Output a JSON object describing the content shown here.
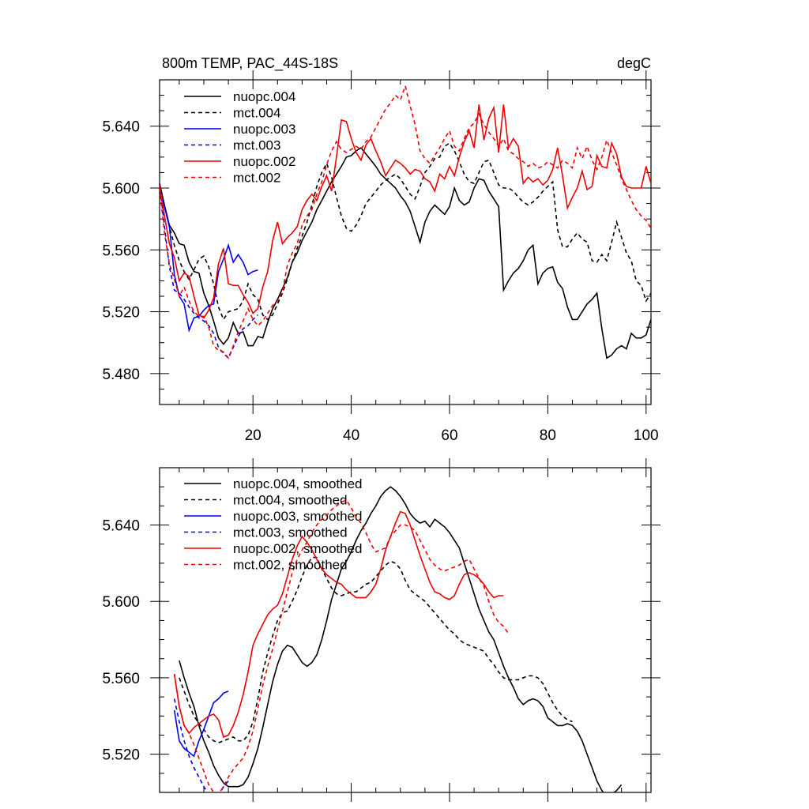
{
  "page": {
    "title_left": "800m TEMP, PAC_44S-18S",
    "title_right": "degC"
  },
  "colors": {
    "black": "#000000",
    "blue": "#0000ee",
    "red": "#ee0000"
  },
  "chart_data": [
    {
      "type": "line",
      "title": "800m TEMP, PAC_44S-18S",
      "units": "degC",
      "xlim": [
        1,
        101
      ],
      "ylim": [
        5.46,
        5.67
      ],
      "xticks": [
        20,
        40,
        60,
        80,
        100
      ],
      "xtick_labels": [
        "20",
        "40",
        "60",
        "80",
        "100"
      ],
      "yticks": [
        5.48,
        5.52,
        5.56,
        5.6,
        5.64
      ],
      "ytick_labels": [
        "5.480",
        "5.520",
        "5.560",
        "5.600",
        "5.640"
      ],
      "legend_position": "top-left",
      "series": [
        {
          "name": "nuopc.004",
          "color": "black",
          "dash": false,
          "x0": 1,
          "values": [
            5.603,
            5.589,
            5.576,
            5.571,
            5.564,
            5.563,
            5.552,
            5.546,
            5.545,
            5.532,
            5.524,
            5.514,
            5.503,
            5.499,
            5.503,
            5.513,
            5.506,
            5.507,
            5.498,
            5.498,
            5.504,
            5.503,
            5.513,
            5.522,
            5.528,
            5.535,
            5.542,
            5.552,
            5.558,
            5.566,
            5.572,
            5.578,
            5.586,
            5.592,
            5.598,
            5.604,
            5.609,
            5.614,
            5.62,
            5.621,
            5.624,
            5.626,
            5.622,
            5.618,
            5.614,
            5.609,
            5.606,
            5.603,
            5.6,
            5.595,
            5.591,
            5.585,
            5.575,
            5.565,
            5.578,
            5.585,
            5.589,
            5.586,
            5.583,
            5.588,
            5.6,
            5.592,
            5.589,
            5.591,
            5.6,
            5.606,
            5.605,
            5.598,
            5.593,
            5.588,
            5.534,
            5.54,
            5.545,
            5.548,
            5.553,
            5.56,
            5.563,
            5.538,
            5.545,
            5.548,
            5.549,
            5.539,
            5.535,
            5.523,
            5.515,
            5.515,
            5.52,
            5.525,
            5.528,
            5.532,
            5.509,
            5.49,
            5.492,
            5.496,
            5.498,
            5.496,
            5.506,
            5.503,
            5.503,
            5.505,
            5.515
          ]
        },
        {
          "name": "mct.004",
          "color": "black",
          "dash": true,
          "x0": 1,
          "values": [
            5.6,
            5.588,
            5.575,
            5.563,
            5.553,
            5.546,
            5.541,
            5.547,
            5.554,
            5.556,
            5.549,
            5.538,
            5.523,
            5.515,
            5.52,
            5.521,
            5.522,
            5.527,
            5.538,
            5.531,
            5.528,
            5.518,
            5.515,
            5.518,
            5.525,
            5.532,
            5.541,
            5.552,
            5.561,
            5.569,
            5.578,
            5.589,
            5.601,
            5.61,
            5.616,
            5.607,
            5.594,
            5.582,
            5.574,
            5.572,
            5.576,
            5.582,
            5.59,
            5.594,
            5.598,
            5.602,
            5.605,
            5.607,
            5.609,
            5.606,
            5.601,
            5.596,
            5.593,
            5.601,
            5.61,
            5.614,
            5.619,
            5.62,
            5.627,
            5.629,
            5.624,
            5.617,
            5.609,
            5.604,
            5.603,
            5.61,
            5.617,
            5.618,
            5.61,
            5.602,
            5.6,
            5.6,
            5.598,
            5.594,
            5.591,
            5.589,
            5.591,
            5.594,
            5.598,
            5.601,
            5.604,
            5.573,
            5.562,
            5.562,
            5.567,
            5.571,
            5.567,
            5.565,
            5.553,
            5.552,
            5.557,
            5.553,
            5.565,
            5.578,
            5.568,
            5.558,
            5.553,
            5.54,
            5.537,
            5.527,
            5.532
          ]
        },
        {
          "name": "nuopc.003",
          "color": "blue",
          "dash": false,
          "x0": 1,
          "values": [
            5.599,
            5.588,
            5.575,
            5.544,
            5.53,
            5.525,
            5.508,
            5.516,
            5.517,
            5.521,
            5.524,
            5.525,
            5.546,
            5.554,
            5.563,
            5.552,
            5.557,
            5.552,
            5.544,
            5.546,
            5.547
          ]
        },
        {
          "name": "mct.003",
          "color": "blue",
          "dash": true,
          "x0": 1,
          "values": [
            5.603,
            5.575,
            5.549,
            5.534,
            5.532,
            5.528,
            5.523,
            5.519,
            5.516,
            5.514,
            5.511,
            5.506,
            5.497,
            5.493,
            5.49,
            5.497,
            5.504,
            5.509,
            5.511,
            5.515,
            5.518
          ]
        },
        {
          "name": "nuopc.002",
          "color": "red",
          "dash": false,
          "x0": 1,
          "values": [
            5.602,
            5.582,
            5.564,
            5.555,
            5.54,
            5.545,
            5.543,
            5.53,
            5.518,
            5.516,
            5.521,
            5.529,
            5.551,
            5.561,
            5.538,
            5.537,
            5.537,
            5.531,
            5.526,
            5.519,
            5.522,
            5.536,
            5.546,
            5.566,
            5.578,
            5.564,
            5.568,
            5.571,
            5.575,
            5.586,
            5.592,
            5.596,
            5.592,
            5.601,
            5.608,
            5.598,
            5.62,
            5.644,
            5.643,
            5.632,
            5.623,
            5.618,
            5.628,
            5.632,
            5.624,
            5.617,
            5.608,
            5.613,
            5.618,
            5.616,
            5.613,
            5.609,
            5.612,
            5.611,
            5.606,
            5.604,
            5.598,
            5.609,
            5.606,
            5.614,
            5.608,
            5.62,
            5.63,
            5.637,
            5.626,
            5.654,
            5.631,
            5.645,
            5.652,
            5.623,
            5.654,
            5.626,
            5.632,
            5.627,
            5.603,
            5.607,
            5.604,
            5.606,
            5.602,
            5.605,
            5.612,
            5.626,
            5.608,
            5.587,
            5.594,
            5.6,
            5.611,
            5.599,
            5.601,
            5.621,
            5.614,
            5.613,
            5.629,
            5.622,
            5.607,
            5.601,
            5.6,
            5.6,
            5.6,
            5.614,
            5.603
          ]
        },
        {
          "name": "mct.002",
          "color": "red",
          "dash": true,
          "x0": 1,
          "values": [
            5.6,
            5.571,
            5.551,
            5.541,
            5.53,
            5.536,
            5.527,
            5.52,
            5.517,
            5.517,
            5.51,
            5.498,
            5.495,
            5.494,
            5.49,
            5.498,
            5.507,
            5.514,
            5.522,
            5.515,
            5.511,
            5.514,
            5.519,
            5.524,
            5.527,
            5.533,
            5.55,
            5.558,
            5.564,
            5.576,
            5.582,
            5.586,
            5.596,
            5.604,
            5.615,
            5.624,
            5.63,
            5.625,
            5.623,
            5.625,
            5.627,
            5.625,
            5.63,
            5.633,
            5.639,
            5.645,
            5.651,
            5.655,
            5.66,
            5.657,
            5.666,
            5.653,
            5.641,
            5.624,
            5.619,
            5.616,
            5.621,
            5.626,
            5.632,
            5.637,
            5.627,
            5.624,
            5.632,
            5.639,
            5.642,
            5.648,
            5.641,
            5.636,
            5.632,
            5.627,
            5.632,
            5.624,
            5.622,
            5.619,
            5.617,
            5.614,
            5.616,
            5.613,
            5.614,
            5.617,
            5.615,
            5.613,
            5.618,
            5.616,
            5.613,
            5.626,
            5.619,
            5.627,
            5.618,
            5.612,
            5.62,
            5.631,
            5.623,
            5.615,
            5.606,
            5.599,
            5.592,
            5.586,
            5.582,
            5.579,
            5.574
          ]
        }
      ]
    },
    {
      "type": "line",
      "title": "",
      "xlim": [
        1,
        101
      ],
      "ylim": [
        5.5,
        5.67
      ],
      "xticks": [
        20,
        40,
        60,
        80,
        100
      ],
      "xtick_labels": [],
      "yticks": [
        5.52,
        5.56,
        5.6,
        5.64
      ],
      "ytick_labels": [
        "5.520",
        "5.560",
        "5.600",
        "5.640"
      ],
      "legend_position": "top-left",
      "series": [
        {
          "name": "nuopc.004, smoothed",
          "color": "black",
          "dash": false,
          "x0": 5,
          "values": [
            5.569,
            5.56,
            5.552,
            5.545,
            5.535,
            5.527,
            5.521,
            5.514,
            5.509,
            5.505,
            5.503,
            5.503,
            5.503,
            5.504,
            5.508,
            5.515,
            5.523,
            5.534,
            5.546,
            5.558,
            5.567,
            5.574,
            5.577,
            5.576,
            5.572,
            5.568,
            5.566,
            5.568,
            5.572,
            5.58,
            5.59,
            5.601,
            5.609,
            5.617,
            5.621,
            5.626,
            5.632,
            5.637,
            5.641,
            5.646,
            5.65,
            5.655,
            5.658,
            5.66,
            5.658,
            5.655,
            5.651,
            5.646,
            5.643,
            5.641,
            5.642,
            5.639,
            5.643,
            5.641,
            5.639,
            5.636,
            5.632,
            5.628,
            5.62,
            5.612,
            5.604,
            5.596,
            5.59,
            5.584,
            5.58,
            5.573,
            5.566,
            5.56,
            5.555,
            5.549,
            5.546,
            5.548,
            5.549,
            5.548,
            5.545,
            5.539,
            5.537,
            5.535,
            5.535,
            5.536,
            5.535,
            5.532,
            5.527,
            5.52,
            5.513,
            5.506,
            5.501,
            5.498,
            5.499,
            5.501,
            5.504
          ]
        },
        {
          "name": "mct.004, smoothed",
          "color": "black",
          "dash": true,
          "x0": 5,
          "values": [
            5.56,
            5.553,
            5.546,
            5.54,
            5.536,
            5.533,
            5.529,
            5.527,
            5.526,
            5.527,
            5.528,
            5.529,
            5.527,
            5.527,
            5.53,
            5.537,
            5.549,
            5.563,
            5.573,
            5.582,
            5.59,
            5.594,
            5.595,
            5.6,
            5.606,
            5.613,
            5.619,
            5.623,
            5.623,
            5.617,
            5.612,
            5.607,
            5.604,
            5.603,
            5.604,
            5.605,
            5.605,
            5.607,
            5.609,
            5.61,
            5.613,
            5.616,
            5.619,
            5.621,
            5.62,
            5.617,
            5.611,
            5.606,
            5.604,
            5.602,
            5.6,
            5.597,
            5.594,
            5.591,
            5.588,
            5.585,
            5.583,
            5.58,
            5.578,
            5.577,
            5.576,
            5.575,
            5.574,
            5.57,
            5.567,
            5.563,
            5.56,
            5.559,
            5.559,
            5.559,
            5.56,
            5.561,
            5.561,
            5.56,
            5.557,
            5.552,
            5.547,
            5.543,
            5.54,
            5.538,
            5.537
          ]
        },
        {
          "name": "nuopc.003, smoothed",
          "color": "blue",
          "dash": false,
          "x0": 4,
          "values": [
            5.543,
            5.527,
            5.523,
            5.521,
            5.519,
            5.527,
            5.533,
            5.54,
            5.547,
            5.549,
            5.552,
            5.553
          ]
        },
        {
          "name": "mct.003, smoothed",
          "color": "blue",
          "dash": true,
          "x0": 4,
          "values": [
            5.549,
            5.537,
            5.527,
            5.519,
            5.513,
            5.508,
            5.503,
            5.499,
            5.497,
            5.498,
            5.503,
            5.506
          ]
        },
        {
          "name": "nuopc.002, smoothed",
          "color": "red",
          "dash": false,
          "x0": 4,
          "values": [
            5.562,
            5.545,
            5.535,
            5.531,
            5.534,
            5.536,
            5.538,
            5.54,
            5.541,
            5.538,
            5.529,
            5.53,
            5.535,
            5.542,
            5.551,
            5.563,
            5.577,
            5.583,
            5.588,
            5.593,
            5.596,
            5.598,
            5.604,
            5.613,
            5.622,
            5.629,
            5.634,
            5.631,
            5.627,
            5.622,
            5.617,
            5.614,
            5.612,
            5.61,
            5.609,
            5.606,
            5.604,
            5.602,
            5.602,
            5.602,
            5.605,
            5.609,
            5.617,
            5.627,
            5.634,
            5.641,
            5.647,
            5.646,
            5.64,
            5.632,
            5.624,
            5.617,
            5.61,
            5.605,
            5.604,
            5.602,
            5.601,
            5.603,
            5.609,
            5.614,
            5.615,
            5.614,
            5.612,
            5.609,
            5.605,
            5.602,
            5.603,
            5.603
          ]
        },
        {
          "name": "mct.002, smoothed",
          "color": "red",
          "dash": true,
          "x0": 4,
          "values": [
            5.562,
            5.545,
            5.535,
            5.531,
            5.525,
            5.518,
            5.511,
            5.504,
            5.5,
            5.499,
            5.503,
            5.508,
            5.512,
            5.515,
            5.518,
            5.524,
            5.532,
            5.544,
            5.556,
            5.566,
            5.575,
            5.585,
            5.595,
            5.605,
            5.615,
            5.622,
            5.627,
            5.631,
            5.636,
            5.64,
            5.643,
            5.645,
            5.648,
            5.65,
            5.652,
            5.653,
            5.649,
            5.644,
            5.641,
            5.636,
            5.63,
            5.626,
            5.627,
            5.628,
            5.634,
            5.637,
            5.64,
            5.64,
            5.639,
            5.637,
            5.632,
            5.627,
            5.622,
            5.619,
            5.617,
            5.616,
            5.617,
            5.618,
            5.619,
            5.621,
            5.622,
            5.617,
            5.612,
            5.608,
            5.6,
            5.593,
            5.589,
            5.587,
            5.583
          ]
        }
      ]
    }
  ]
}
